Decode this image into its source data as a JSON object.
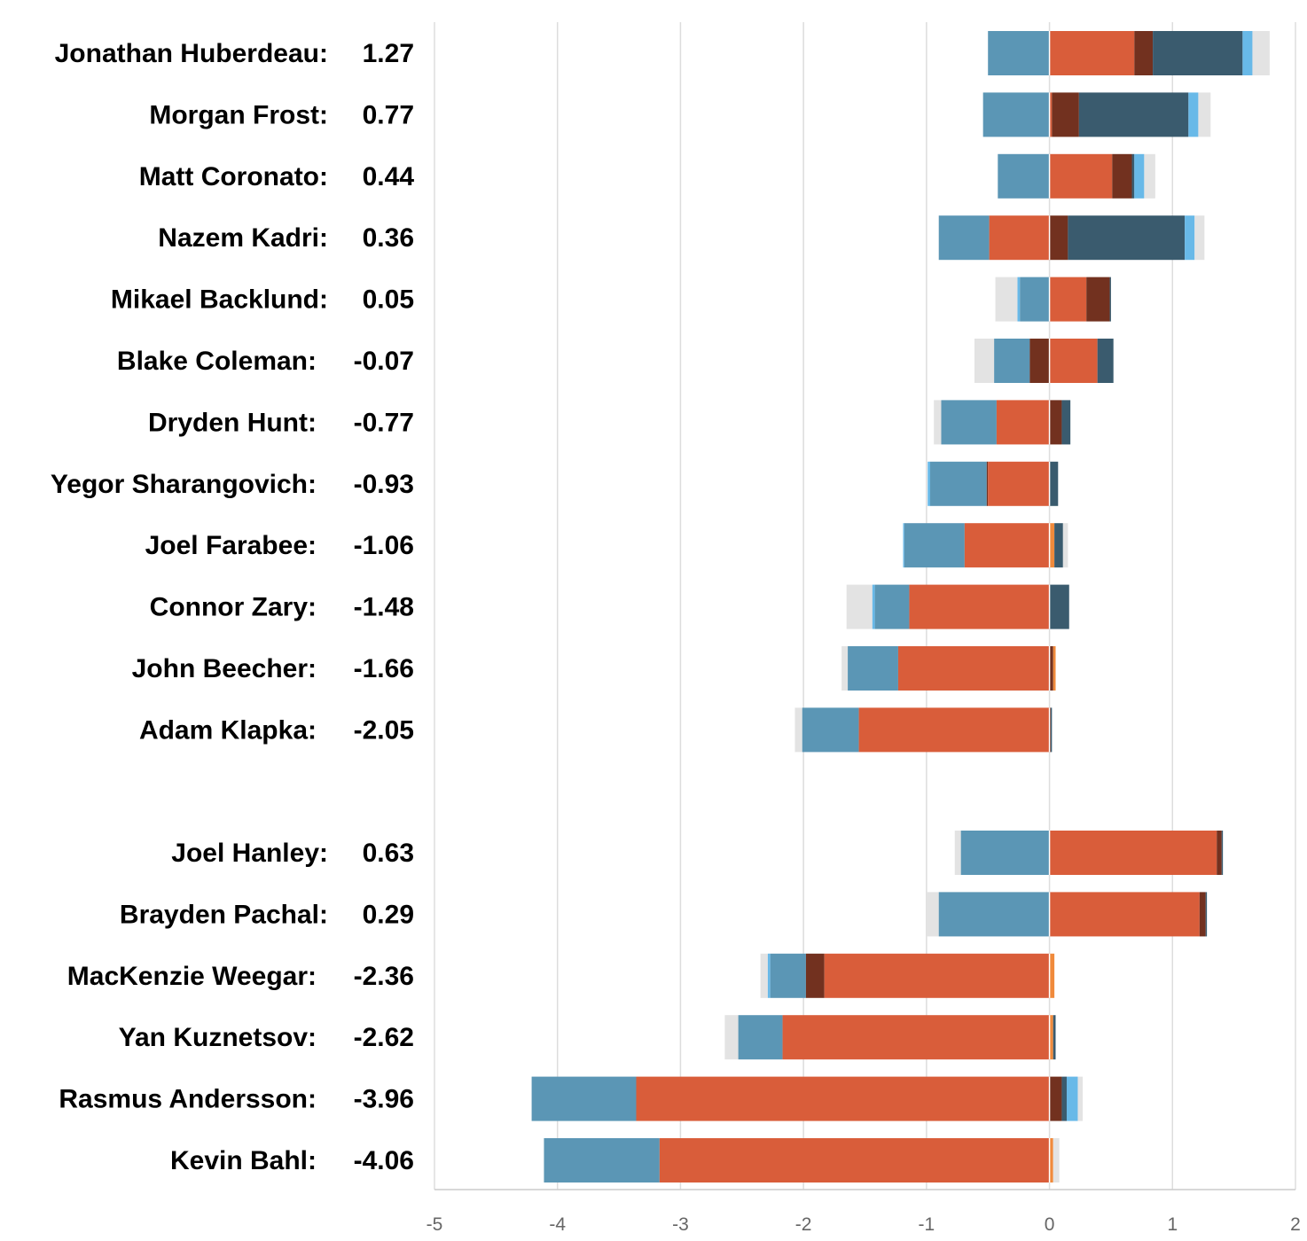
{
  "chart_data": {
    "type": "bar",
    "orientation": "horizontal",
    "stacked": true,
    "diverging": true,
    "xlim": [
      -5,
      2
    ],
    "x_ticks": [
      "-5",
      "-4",
      "-3",
      "-2",
      "-1",
      "0",
      "1",
      "2"
    ],
    "grid": "vertical",
    "groups": [
      {
        "players": [
          {
            "name": "Jonathan Huberdeau:",
            "value": "1.27",
            "segments": [
              [
                -0.5,
                0,
                "#5b96b5"
              ],
              [
                0,
                0.69,
                "#d95d3a"
              ],
              [
                0.69,
                0.84,
                "#72311f"
              ],
              [
                0.84,
                1.57,
                "#3a5b6e"
              ],
              [
                1.57,
                1.65,
                "#68b9e8"
              ],
              [
                1.65,
                1.79,
                "#e3e3e3"
              ]
            ]
          },
          {
            "name": "Morgan Frost:",
            "value": "0.77",
            "segments": [
              [
                -0.54,
                0,
                "#5b96b5"
              ],
              [
                0,
                0.02,
                "#d95d3a"
              ],
              [
                0.02,
                0.24,
                "#72311f"
              ],
              [
                0.24,
                1.13,
                "#3a5b6e"
              ],
              [
                1.13,
                1.21,
                "#68b9e8"
              ],
              [
                1.21,
                1.31,
                "#e3e3e3"
              ]
            ]
          },
          {
            "name": "Matt Coronato:",
            "value": "0.44",
            "segments": [
              [
                -0.42,
                0,
                "#5b96b5"
              ],
              [
                0,
                0.51,
                "#d95d3a"
              ],
              [
                0.51,
                0.67,
                "#72311f"
              ],
              [
                0.67,
                0.69,
                "#3a5b6e"
              ],
              [
                0.69,
                0.77,
                "#68b9e8"
              ],
              [
                0.77,
                0.86,
                "#e3e3e3"
              ]
            ]
          },
          {
            "name": "Nazem Kadri:",
            "value": "0.36",
            "segments": [
              [
                -0.9,
                -0.49,
                "#5b96b5"
              ],
              [
                -0.49,
                0,
                "#d95d3a"
              ],
              [
                0,
                0.15,
                "#72311f"
              ],
              [
                0.15,
                1.1,
                "#3a5b6e"
              ],
              [
                1.1,
                1.18,
                "#68b9e8"
              ],
              [
                1.18,
                1.26,
                "#e3e3e3"
              ]
            ]
          },
          {
            "name": "Mikael Backlund:",
            "value": "0.05",
            "segments": [
              [
                -0.44,
                -0.26,
                "#e3e3e3"
              ],
              [
                -0.26,
                -0.24,
                "#68b9e8"
              ],
              [
                -0.24,
                0,
                "#5b96b5"
              ],
              [
                0,
                0.3,
                "#d95d3a"
              ],
              [
                0.3,
                0.49,
                "#72311f"
              ],
              [
                0.49,
                0.5,
                "#3a5b6e"
              ]
            ]
          },
          {
            "name": "Blake Coleman:",
            "value": "-0.07",
            "segments": [
              [
                -0.61,
                -0.45,
                "#e3e3e3"
              ],
              [
                -0.45,
                -0.16,
                "#5b96b5"
              ],
              [
                -0.16,
                0,
                "#72311f"
              ],
              [
                0,
                0.39,
                "#d95d3a"
              ],
              [
                0.39,
                0.52,
                "#3a5b6e"
              ]
            ]
          },
          {
            "name": "Dryden Hunt:",
            "value": "-0.77",
            "segments": [
              [
                -0.94,
                -0.88,
                "#e3e3e3"
              ],
              [
                -0.88,
                -0.43,
                "#5b96b5"
              ],
              [
                -0.43,
                0,
                "#d95d3a"
              ],
              [
                0,
                0.1,
                "#72311f"
              ],
              [
                0.1,
                0.17,
                "#3a5b6e"
              ]
            ]
          },
          {
            "name": "Yegor Sharangovich:",
            "value": "-0.93",
            "segments": [
              [
                -0.99,
                -0.97,
                "#68b9e8"
              ],
              [
                -0.97,
                -0.51,
                "#5b96b5"
              ],
              [
                -0.51,
                -0.5,
                "#72311f"
              ],
              [
                -0.5,
                0,
                "#d95d3a"
              ],
              [
                0,
                0.07,
                "#3a5b6e"
              ]
            ]
          },
          {
            "name": "Joel Farabee:",
            "value": "-1.06",
            "segments": [
              [
                -1.19,
                -1.18,
                "#68b9e8"
              ],
              [
                -1.18,
                -0.69,
                "#5b96b5"
              ],
              [
                -0.69,
                0,
                "#d95d3a"
              ],
              [
                0,
                0.04,
                "#f08a3c"
              ],
              [
                0.04,
                0.11,
                "#3a5b6e"
              ],
              [
                0.11,
                0.15,
                "#e3e3e3"
              ]
            ]
          },
          {
            "name": "Connor Zary:",
            "value": "-1.48",
            "segments": [
              [
                -1.65,
                -1.44,
                "#e3e3e3"
              ],
              [
                -1.44,
                -1.42,
                "#68b9e8"
              ],
              [
                -1.42,
                -1.14,
                "#5b96b5"
              ],
              [
                -1.14,
                0,
                "#d95d3a"
              ],
              [
                0,
                0.16,
                "#3a5b6e"
              ]
            ]
          },
          {
            "name": "John Beecher:",
            "value": "-1.66",
            "segments": [
              [
                -1.69,
                -1.64,
                "#e3e3e3"
              ],
              [
                -1.64,
                -1.23,
                "#5b96b5"
              ],
              [
                -1.23,
                0,
                "#d95d3a"
              ],
              [
                0,
                0.03,
                "#72311f"
              ],
              [
                0.03,
                0.05,
                "#f08a3c"
              ]
            ]
          },
          {
            "name": "Adam Klapka:",
            "value": "-2.05",
            "segments": [
              [
                -2.07,
                -2.01,
                "#e3e3e3"
              ],
              [
                -2.01,
                -1.55,
                "#5b96b5"
              ],
              [
                -1.55,
                0,
                "#d95d3a"
              ],
              [
                0,
                0.01,
                "#72311f"
              ],
              [
                0.01,
                0.02,
                "#3a5b6e"
              ]
            ]
          }
        ]
      },
      {
        "players": [
          {
            "name": "Joel Hanley:",
            "value": "0.63",
            "segments": [
              [
                -0.77,
                -0.72,
                "#e3e3e3"
              ],
              [
                -0.72,
                0,
                "#5b96b5"
              ],
              [
                0,
                1.36,
                "#d95d3a"
              ],
              [
                1.36,
                1.4,
                "#72311f"
              ],
              [
                1.4,
                1.41,
                "#3a5b6e"
              ]
            ]
          },
          {
            "name": "Brayden Pachal:",
            "value": "0.29",
            "segments": [
              [
                -1,
                -0.9,
                "#e3e3e3"
              ],
              [
                -0.9,
                0,
                "#5b96b5"
              ],
              [
                0,
                1.22,
                "#d95d3a"
              ],
              [
                1.22,
                1.27,
                "#72311f"
              ],
              [
                1.27,
                1.28,
                "#3a5b6e"
              ]
            ]
          },
          {
            "name": "MacKenzie Weegar:",
            "value": "-2.36",
            "segments": [
              [
                -2.35,
                -2.29,
                "#e3e3e3"
              ],
              [
                -2.29,
                -2.27,
                "#68b9e8"
              ],
              [
                -2.27,
                -1.98,
                "#5b96b5"
              ],
              [
                -1.98,
                -1.83,
                "#72311f"
              ],
              [
                -1.83,
                0,
                "#d95d3a"
              ],
              [
                0,
                0.04,
                "#f08a3c"
              ]
            ]
          },
          {
            "name": "Yan Kuznetsov:",
            "value": "-2.62",
            "segments": [
              [
                -2.64,
                -2.53,
                "#e3e3e3"
              ],
              [
                -2.53,
                -2.17,
                "#5b96b5"
              ],
              [
                -2.17,
                0,
                "#d95d3a"
              ],
              [
                0,
                0.03,
                "#f08a3c"
              ],
              [
                0.03,
                0.05,
                "#3a5b6e"
              ]
            ]
          },
          {
            "name": "Rasmus Andersson:",
            "value": "-3.96",
            "segments": [
              [
                -4.21,
                -3.36,
                "#5b96b5"
              ],
              [
                -3.36,
                0,
                "#d95d3a"
              ],
              [
                0,
                0.1,
                "#72311f"
              ],
              [
                0.1,
                0.14,
                "#3a5b6e"
              ],
              [
                0.14,
                0.23,
                "#68b9e8"
              ],
              [
                0.23,
                0.27,
                "#e3e3e3"
              ]
            ]
          },
          {
            "name": "Kevin Bahl:",
            "value": "-4.06",
            "segments": [
              [
                -4.11,
                -3.17,
                "#5b96b5"
              ],
              [
                -3.17,
                0,
                "#d95d3a"
              ],
              [
                0,
                0.03,
                "#f08a3c"
              ],
              [
                0.03,
                0.08,
                "#e3e3e3"
              ]
            ]
          }
        ]
      }
    ]
  }
}
